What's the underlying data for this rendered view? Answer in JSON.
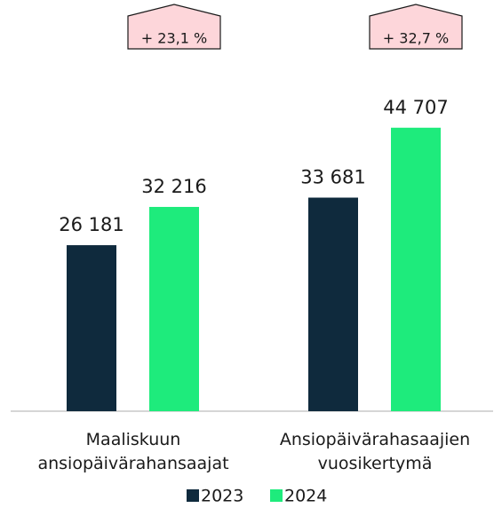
{
  "chart_data": {
    "type": "bar",
    "categories": [
      "Maaliskuun ansiopäivärahansaajat",
      "Ansiopäivärahasaajien vuosikertymä"
    ],
    "series": [
      {
        "name": "2023",
        "color": "#0f2a3d",
        "values": [
          26181,
          33681
        ],
        "value_labels": [
          "26 181",
          "33 681"
        ]
      },
      {
        "name": "2024",
        "color": "#1eeb7c",
        "values": [
          32216,
          44707
        ],
        "value_labels": [
          "32 216",
          "44 707"
        ]
      }
    ],
    "annotations": [
      "+ 23,1 %",
      "+ 32,7 %"
    ],
    "ylim": [
      0,
      50000
    ]
  }
}
